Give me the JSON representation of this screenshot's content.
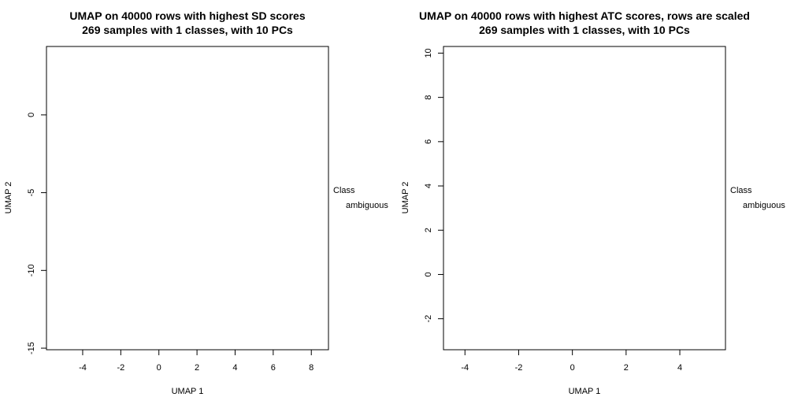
{
  "chart_data": [
    {
      "type": "scatter",
      "title": "UMAP on 40000 rows with highest SD scores",
      "subtitle": "269 samples with 1 classes, with 10 PCs",
      "xlabel": "UMAP 1",
      "ylabel": "UMAP 2",
      "xlim": [
        -5.9,
        8.9
      ],
      "ylim": [
        -15.1,
        4.4
      ],
      "xticks": [
        -4,
        -2,
        0,
        2,
        4,
        6,
        8
      ],
      "yticks": [
        -15,
        -10,
        -5,
        0
      ],
      "series": [],
      "legend": {
        "title": "Class",
        "entries": [
          "ambiguous"
        ],
        "placement": "right"
      },
      "grid": false
    },
    {
      "type": "scatter",
      "title": "UMAP on 40000 rows with highest ATC scores, rows are scaled",
      "subtitle": "269 samples with 1 classes, with 10 PCs",
      "xlabel": "UMAP 1",
      "ylabel": "UMAP 2",
      "xlim": [
        -4.8,
        5.7
      ],
      "ylim": [
        -3.4,
        10.3
      ],
      "xticks": [
        -4,
        -2,
        0,
        2,
        4
      ],
      "yticks": [
        -2,
        0,
        2,
        4,
        6,
        8,
        10
      ],
      "series": [],
      "legend": {
        "title": "Class",
        "entries": [
          "ambiguous"
        ],
        "placement": "right"
      },
      "grid": false
    }
  ]
}
